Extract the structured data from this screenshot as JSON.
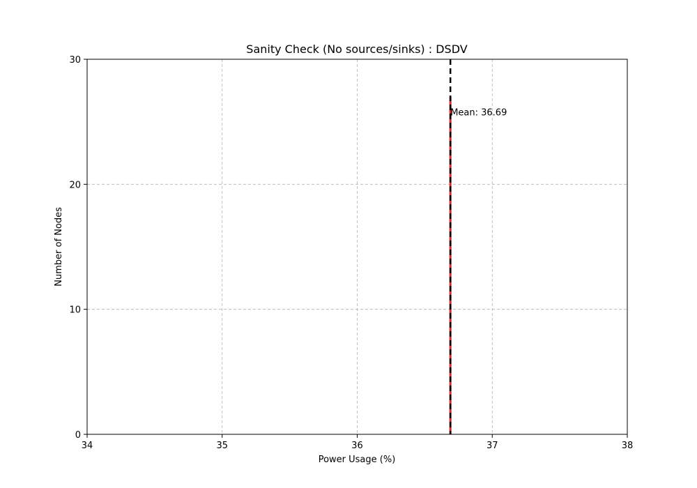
{
  "chart_data": {
    "type": "bar",
    "title": "Sanity Check (No sources/sinks) : DSDV",
    "xlabel": "Power Usage (%)",
    "ylabel": "Number of Nodes",
    "xlim": [
      34,
      38
    ],
    "ylim": [
      0,
      30
    ],
    "xticks": [
      "34",
      "35",
      "36",
      "37",
      "38"
    ],
    "yticks": [
      "0",
      "10",
      "20",
      "30"
    ],
    "grid": true,
    "bars": [
      {
        "x": 36.69,
        "value": 27,
        "color": "#d62728"
      }
    ],
    "mean_line": {
      "x": 36.69,
      "color": "#000000",
      "style": "dashed"
    },
    "annotations": [
      {
        "text": "Mean: 36.69",
        "x": 36.69,
        "y": 25.8
      }
    ]
  }
}
